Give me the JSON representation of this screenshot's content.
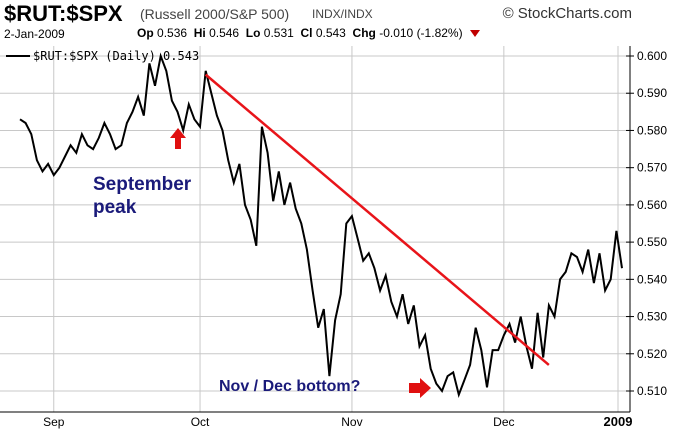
{
  "header": {
    "symbol": "$RUT:$SPX",
    "description": "(Russell 2000/S&P 500)",
    "exchange": "INDX/INDX",
    "brand": "© StockCharts.com",
    "date": "2-Jan-2009",
    "op_label": "Op",
    "op_value": "0.536",
    "hi_label": "Hi",
    "hi_value": "0.546",
    "lo_label": "Lo",
    "lo_value": "0.531",
    "cl_label": "Cl",
    "cl_value": "0.543",
    "chg_label": "Chg",
    "chg_value": "-0.010 (-1.82%)"
  },
  "legend": {
    "text": "$RUT:$SPX (Daily) 0.543"
  },
  "annotations": {
    "peak": [
      "September",
      "peak"
    ],
    "bottom": "Nov / Dec bottom?"
  },
  "colors": {
    "line": "#000000",
    "trendline": "#e8141a",
    "annotation": "#1a1a7a",
    "arrow": "#e01010",
    "grid": "#c8c8c8"
  },
  "chart_data": {
    "type": "line",
    "ylim": [
      0.505,
      0.602
    ],
    "y_ticks": [
      "0.510",
      "0.520",
      "0.530",
      "0.540",
      "0.550",
      "0.560",
      "0.570",
      "0.580",
      "0.590",
      "0.600"
    ],
    "x_ticks": [
      "Sep",
      "Oct",
      "Nov",
      "Dec",
      "2009"
    ],
    "series": [
      {
        "values": [
          0.583,
          0.582,
          0.579,
          0.572,
          0.569,
          0.571,
          0.568,
          0.57,
          0.573,
          0.576,
          0.574,
          0.579,
          0.576,
          0.575,
          0.578,
          0.582,
          0.579,
          0.575,
          0.576,
          0.582,
          0.585,
          0.589,
          0.584,
          0.598,
          0.592,
          0.6,
          0.596,
          0.588,
          0.585,
          0.58,
          0.587,
          0.583,
          0.581,
          0.596,
          0.59,
          0.584,
          0.58,
          0.572,
          0.566,
          0.571,
          0.56,
          0.556,
          0.549,
          0.581,
          0.574,
          0.561,
          0.569,
          0.56,
          0.566,
          0.559,
          0.555,
          0.548,
          0.537,
          0.527,
          0.532,
          0.514,
          0.529,
          0.536,
          0.555,
          0.557,
          0.551,
          0.545,
          0.547,
          0.543,
          0.537,
          0.541,
          0.534,
          0.53,
          0.536,
          0.528,
          0.533,
          0.522,
          0.525,
          0.516,
          0.512,
          0.51,
          0.514,
          0.515,
          0.509,
          0.513,
          0.517,
          0.527,
          0.521,
          0.511,
          0.521,
          0.521,
          0.525,
          0.528,
          0.523,
          0.53,
          0.522,
          0.516,
          0.531,
          0.519,
          0.533,
          0.53,
          0.54,
          0.542,
          0.547,
          0.546,
          0.542,
          0.548,
          0.539,
          0.547,
          0.537,
          0.54,
          0.553,
          0.543
        ]
      }
    ],
    "trendline": {
      "from": {
        "x_index": 33,
        "y": 0.595
      },
      "to": {
        "x_index": 94,
        "y": 0.517
      }
    }
  }
}
